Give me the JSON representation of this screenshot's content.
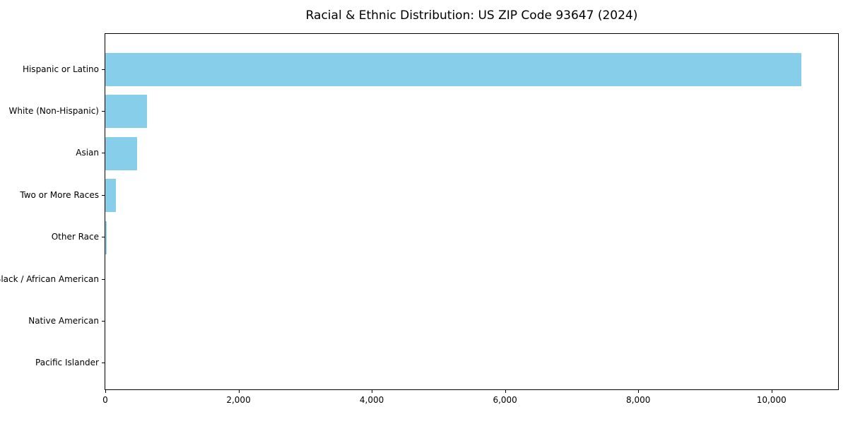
{
  "chart_data": {
    "type": "bar",
    "orientation": "horizontal",
    "title": "Racial & Ethnic Distribution: US ZIP Code 93647 (2024)",
    "categories": [
      "Hispanic or Latino",
      "White (Non-Hispanic)",
      "Asian",
      "Two or More Races",
      "Other Race",
      "Black / African American",
      "Native American",
      "Pacific Islander"
    ],
    "values": [
      10450,
      625,
      480,
      160,
      18,
      0,
      0,
      0
    ],
    "xlabel": "",
    "ylabel": "",
    "xlim": [
      0,
      11000
    ],
    "x_ticks": [
      0,
      2000,
      4000,
      6000,
      8000,
      10000
    ],
    "x_tick_labels": [
      "0",
      "2,000",
      "4,000",
      "6,000",
      "8,000",
      "10,000"
    ],
    "bar_color": "#87CEEB",
    "grid": false,
    "legend": false
  }
}
